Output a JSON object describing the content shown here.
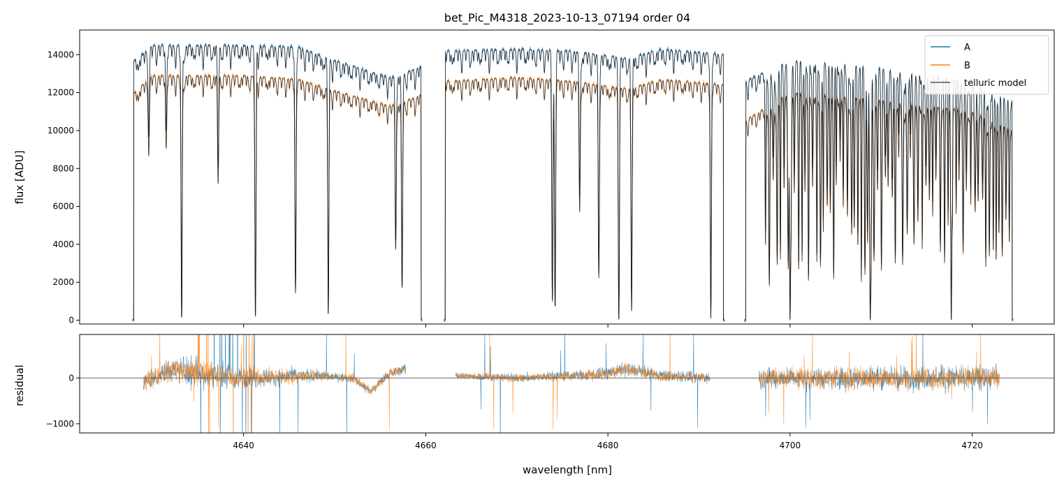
{
  "chart_data": [
    {
      "panel": "top",
      "type": "line",
      "title": "bet_Pic_M4318_2023-10-13_07194  order 04",
      "xlabel": "",
      "ylabel": "flux [ADU]",
      "xlim": [
        4622,
        4729
      ],
      "ylim": [
        -200,
        15300
      ],
      "yticks": [
        0,
        2000,
        4000,
        6000,
        8000,
        10000,
        12000,
        14000
      ],
      "ytick_labels": [
        "0",
        "2000",
        "4000",
        "6000",
        "8000",
        "10000",
        "12000",
        "14000"
      ],
      "xticks": [
        4640,
        4660,
        4680,
        4700,
        4720
      ],
      "legend": {
        "placement": "top-right",
        "entries": [
          {
            "label": "A",
            "color": "#1f77b4"
          },
          {
            "label": "B",
            "color": "#ff7f0e"
          },
          {
            "label": "telluric model",
            "color": "#555555"
          }
        ]
      },
      "segments": [
        [
          4627.8,
          4659.6
        ],
        [
          4662.0,
          4692.8
        ],
        [
          4695.0,
          4724.5
        ]
      ],
      "continuum_A": [
        [
          4627.8,
          13600
        ],
        [
          4630,
          14500
        ],
        [
          4640,
          14500
        ],
        [
          4646,
          14400
        ],
        [
          4650,
          13700
        ],
        [
          4656,
          12800
        ],
        [
          4657.5,
          13000
        ],
        [
          4659.6,
          13400
        ],
        [
          4662,
          14200
        ],
        [
          4670,
          14300
        ],
        [
          4676,
          14200
        ],
        [
          4682,
          13800
        ],
        [
          4686,
          14300
        ],
        [
          4692.8,
          14000
        ],
        [
          4695,
          12600
        ],
        [
          4700,
          13700
        ],
        [
          4710,
          13300
        ],
        [
          4720,
          12500
        ],
        [
          4724.5,
          11500
        ]
      ],
      "continuum_B": [
        [
          4627.8,
          11900
        ],
        [
          4630,
          12900
        ],
        [
          4640,
          12900
        ],
        [
          4646,
          12700
        ],
        [
          4650,
          12100
        ],
        [
          4656,
          11300
        ],
        [
          4657.5,
          11500
        ],
        [
          4659.6,
          11900
        ],
        [
          4662,
          12600
        ],
        [
          4670,
          12800
        ],
        [
          4676,
          12600
        ],
        [
          4682,
          12200
        ],
        [
          4686,
          12700
        ],
        [
          4692.8,
          12400
        ],
        [
          4695,
          10500
        ],
        [
          4700,
          12000
        ],
        [
          4710,
          11600
        ],
        [
          4720,
          11000
        ],
        [
          4724.5,
          10000
        ]
      ],
      "absorption_lines": [
        {
          "wavelength_nm": 4629.6,
          "min_flux_A": 10000,
          "min_flux_B": 9000
        },
        {
          "wavelength_nm": 4631.5,
          "min_flux_A": 10500,
          "min_flux_B": 9500
        },
        {
          "wavelength_nm": 4633.2,
          "min_flux_A": 0,
          "min_flux_B": 0
        },
        {
          "wavelength_nm": 4637.2,
          "min_flux_A": 8000,
          "min_flux_B": 7200
        },
        {
          "wavelength_nm": 4641.3,
          "min_flux_A": 100,
          "min_flux_B": 100
        },
        {
          "wavelength_nm": 4645.7,
          "min_flux_A": 1700,
          "min_flux_B": 1400
        },
        {
          "wavelength_nm": 4649.3,
          "min_flux_A": 300,
          "min_flux_B": 300
        },
        {
          "wavelength_nm": 4656.7,
          "min_flux_A": 4300,
          "min_flux_B": 3800
        },
        {
          "wavelength_nm": 4657.4,
          "min_flux_A": 1700,
          "min_flux_B": 1600
        },
        {
          "wavelength_nm": 4673.9,
          "min_flux_A": 1100,
          "min_flux_B": 1000
        },
        {
          "wavelength_nm": 4674.2,
          "min_flux_A": 600,
          "min_flux_B": 600
        },
        {
          "wavelength_nm": 4676.9,
          "min_flux_A": 6700,
          "min_flux_B": 5900
        },
        {
          "wavelength_nm": 4679.0,
          "min_flux_A": 2600,
          "min_flux_B": 2300
        },
        {
          "wavelength_nm": 4681.2,
          "min_flux_A": 0,
          "min_flux_B": 0
        },
        {
          "wavelength_nm": 4682.6,
          "min_flux_A": 400,
          "min_flux_B": 400
        },
        {
          "wavelength_nm": 4691.3,
          "min_flux_A": 100,
          "min_flux_B": 100
        },
        {
          "wavelength_nm": 4700.0,
          "min_flux_A": 0,
          "min_flux_B": 0
        },
        {
          "wavelength_nm": 4708.8,
          "min_flux_A": 0,
          "min_flux_B": 0
        },
        {
          "wavelength_nm": 4717.7,
          "min_flux_A": 0,
          "min_flux_B": 0
        }
      ],
      "series": [
        {
          "name": "A",
          "color": "#1f77b4",
          "description_of_values": "continuum_A with absorption_lines"
        },
        {
          "name": "B",
          "color": "#ff7f0e",
          "description_of_values": "continuum_B with absorption_lines"
        },
        {
          "name": "telluric model",
          "color": "#555555",
          "description_of_values": "smooth model following A and B"
        }
      ]
    },
    {
      "panel": "bottom",
      "type": "line",
      "title": "",
      "xlabel": "wavelength [nm]",
      "ylabel": "residual",
      "xlim": [
        4622,
        4729
      ],
      "ylim": [
        -1200,
        950
      ],
      "yticks": [
        -1000,
        0
      ],
      "ytick_labels": [
        "−1000",
        "0"
      ],
      "xticks": [
        4640,
        4660,
        4680,
        4700,
        4720
      ],
      "xtick_labels": [
        "4640",
        "4660",
        "4680",
        "4700",
        "4720"
      ],
      "zero_line": 0,
      "segments": [
        [
          4629.0,
          4657.8
        ],
        [
          4663.3,
          4691.2
        ],
        [
          4696.6,
          4723.0
        ]
      ],
      "scatter_amplitude": [
        [
          4629,
          500
        ],
        [
          4634,
          900
        ],
        [
          4642,
          600
        ],
        [
          4650,
          250
        ],
        [
          4657.8,
          300
        ],
        [
          4663.3,
          200
        ],
        [
          4675,
          300
        ],
        [
          4681,
          400
        ],
        [
          4691.2,
          300
        ],
        [
          4696.6,
          600
        ],
        [
          4710,
          700
        ],
        [
          4723,
          750
        ]
      ],
      "trend": [
        [
          4629,
          -100
        ],
        [
          4632,
          200
        ],
        [
          4636,
          100
        ],
        [
          4640,
          0
        ],
        [
          4648,
          50
        ],
        [
          4652,
          0
        ],
        [
          4654,
          -300
        ],
        [
          4656,
          100
        ],
        [
          4657.8,
          200
        ],
        [
          4663.3,
          50
        ],
        [
          4670,
          0
        ],
        [
          4676,
          50
        ],
        [
          4680,
          100
        ],
        [
          4682,
          200
        ],
        [
          4686,
          50
        ],
        [
          4691.2,
          0
        ],
        [
          4696.6,
          0
        ],
        [
          4710,
          0
        ],
        [
          4723,
          0
        ]
      ],
      "series": [
        {
          "name": "A",
          "color": "#1f77b4"
        },
        {
          "name": "B",
          "color": "#ff7f0e"
        }
      ]
    }
  ]
}
